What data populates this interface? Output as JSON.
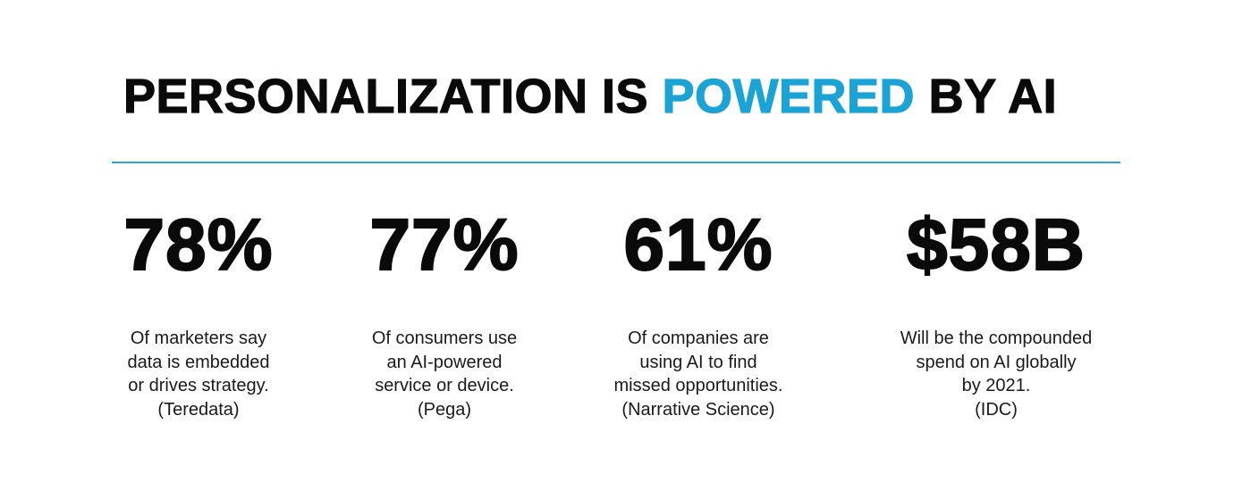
{
  "header": {
    "title_part1": "PERSONALIZATION IS ",
    "title_highlight": "POWERED",
    "title_part2": " BY AI",
    "accent_color": "#1aa3d4"
  },
  "stats": [
    {
      "value": "78%",
      "lines": [
        "Of marketers say",
        "data is embedded",
        "or drives strategy.",
        "(Teredata)"
      ]
    },
    {
      "value": "77%",
      "lines": [
        "Of consumers use",
        "an AI-powered",
        "service or device.",
        "(Pega)"
      ]
    },
    {
      "value": "61%",
      "lines": [
        "Of companies are",
        "using AI to find",
        "missed opportunities.",
        "(Narrative Science)"
      ]
    },
    {
      "value": "$58B",
      "lines": [
        "Will be the compounded",
        "spend on AI globally",
        "by 2021.",
        "(IDC)"
      ]
    }
  ]
}
